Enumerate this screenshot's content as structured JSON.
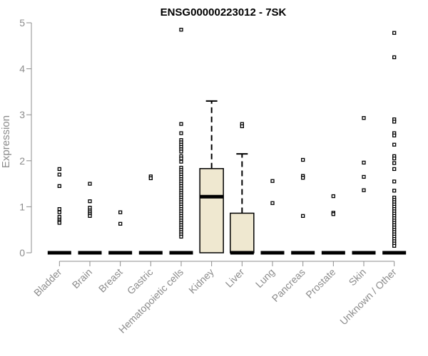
{
  "chart_data": {
    "type": "box",
    "title": "ENSG00000223012 - 7SK",
    "xlabel": "",
    "ylabel": "Expression",
    "ylim": [
      0,
      5
    ],
    "yticks": [
      "0",
      "1",
      "2",
      "3",
      "4",
      "5"
    ],
    "categories": [
      "Bladder",
      "Brain",
      "Breast",
      "Gastric",
      "Hematopoietic cells",
      "Kidney",
      "Liver",
      "Lung",
      "Pancreas",
      "Prostate",
      "Skin",
      "Unknown / Other"
    ],
    "box_fill": "#efe8d0",
    "boxes": [
      {
        "category": "Bladder",
        "q1": 0,
        "median": 0,
        "q3": 0,
        "whisker_low": 0,
        "whisker_high": 0,
        "outliers": [
          1.82,
          1.7,
          1.45,
          0.95,
          0.88,
          0.78,
          0.72,
          0.68,
          0.65
        ]
      },
      {
        "category": "Brain",
        "q1": 0,
        "median": 0,
        "q3": 0,
        "whisker_low": 0,
        "whisker_high": 0,
        "outliers": [
          1.5,
          1.12,
          0.98,
          0.92,
          0.88,
          0.84,
          0.8
        ]
      },
      {
        "category": "Breast",
        "q1": 0,
        "median": 0,
        "q3": 0,
        "whisker_low": 0,
        "whisker_high": 0,
        "outliers": [
          0.88,
          0.63
        ]
      },
      {
        "category": "Gastric",
        "q1": 0,
        "median": 0,
        "q3": 0,
        "whisker_low": 0,
        "whisker_high": 0,
        "outliers": [
          1.66,
          1.62
        ]
      },
      {
        "category": "Hematopoietic cells",
        "q1": 0,
        "median": 0,
        "q3": 0,
        "whisker_low": 0,
        "whisker_high": 0,
        "outliers": [
          4.85,
          2.8,
          2.6,
          2.45,
          2.4,
          2.35,
          2.3,
          2.25,
          2.2,
          2.1,
          2.05,
          1.98,
          1.85,
          1.8,
          1.75,
          1.7,
          1.65,
          1.6,
          1.55,
          1.5,
          1.45,
          1.4,
          1.35,
          1.3,
          1.25,
          1.2,
          1.15,
          1.1,
          1.05,
          1.0,
          0.95,
          0.9,
          0.85,
          0.8,
          0.75,
          0.7,
          0.65,
          0.6,
          0.55,
          0.5,
          0.45,
          0.4,
          0.35
        ]
      },
      {
        "category": "Kidney",
        "q1": 0,
        "median": 1.22,
        "q3": 1.83,
        "whisker_low": 0,
        "whisker_high": 3.3,
        "outliers": []
      },
      {
        "category": "Liver",
        "q1": 0,
        "median": 0,
        "q3": 0.86,
        "whisker_low": 0,
        "whisker_high": 2.15,
        "outliers": [
          2.8,
          2.75
        ]
      },
      {
        "category": "Lung",
        "q1": 0,
        "median": 0,
        "q3": 0,
        "whisker_low": 0,
        "whisker_high": 0,
        "outliers": [
          1.56,
          1.08
        ]
      },
      {
        "category": "Pancreas",
        "q1": 0,
        "median": 0,
        "q3": 0,
        "whisker_low": 0,
        "whisker_high": 0,
        "outliers": [
          2.02,
          1.67,
          1.63,
          0.8
        ]
      },
      {
        "category": "Prostate",
        "q1": 0,
        "median": 0,
        "q3": 0,
        "whisker_low": 0,
        "whisker_high": 0,
        "outliers": [
          1.23,
          0.87,
          0.84
        ]
      },
      {
        "category": "Skin",
        "q1": 0,
        "median": 0,
        "q3": 0,
        "whisker_low": 0,
        "whisker_high": 0,
        "outliers": [
          2.93,
          1.96,
          1.65,
          1.36
        ]
      },
      {
        "category": "Unknown / Other",
        "q1": 0,
        "median": 0,
        "q3": 0,
        "whisker_low": 0,
        "whisker_high": 0,
        "outliers": [
          4.78,
          4.25,
          2.9,
          2.85,
          2.6,
          2.55,
          2.35,
          2.1,
          2.05,
          1.95,
          1.82,
          1.55,
          1.35,
          1.2,
          1.15,
          1.1,
          1.05,
          1.0,
          0.95,
          0.9,
          0.85,
          0.8,
          0.75,
          0.7,
          0.65,
          0.6,
          0.55,
          0.5,
          0.45,
          0.4,
          0.35,
          0.3,
          0.25,
          0.2,
          0.15
        ]
      }
    ]
  }
}
